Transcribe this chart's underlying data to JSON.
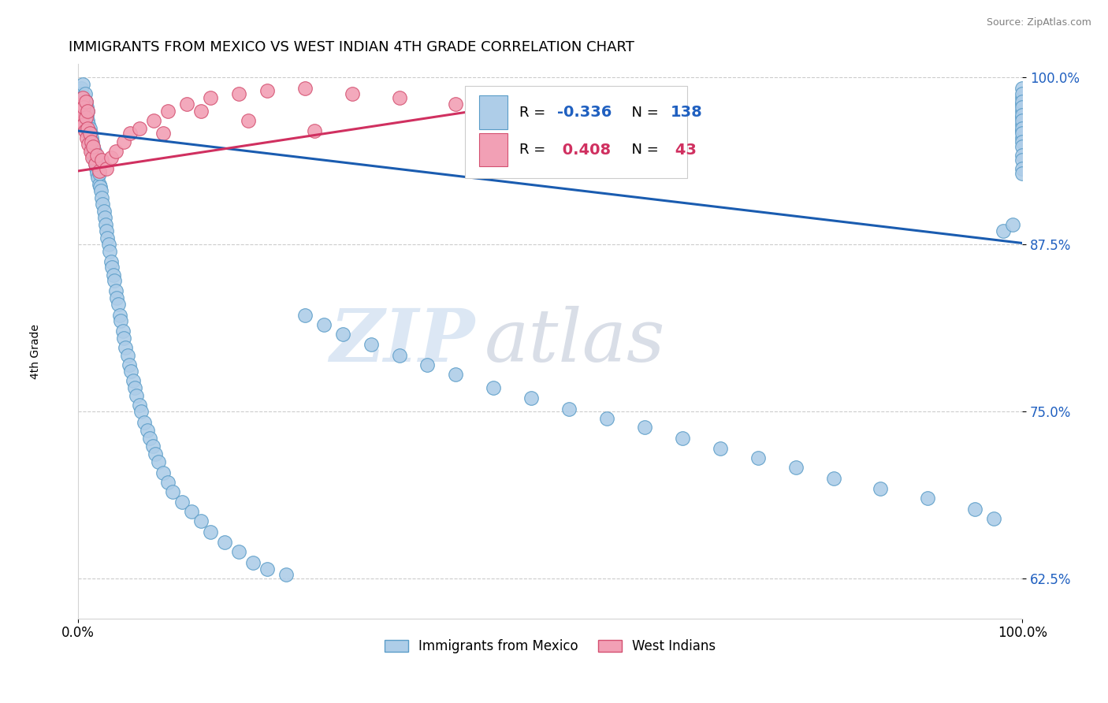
{
  "title": "IMMIGRANTS FROM MEXICO VS WEST INDIAN 4TH GRADE CORRELATION CHART",
  "source_text": "Source: ZipAtlas.com",
  "ylabel": "4th Grade",
  "xlim": [
    0.0,
    1.0
  ],
  "ylim": [
    0.595,
    1.01
  ],
  "x_tick_labels": [
    "0.0%",
    "100.0%"
  ],
  "y_tick_right": [
    0.625,
    0.75,
    0.875,
    1.0
  ],
  "y_tick_right_labels": [
    "62.5%",
    "75.0%",
    "87.5%",
    "100.0%"
  ],
  "mexico_color": "#aecde8",
  "mexico_edge": "#5b9dc8",
  "west_indian_color": "#f2a0b5",
  "west_indian_edge": "#d45070",
  "legend_R_color_mexico": "#2060c0",
  "legend_R_color_west": "#d03060",
  "trend_blue": "#1a5cb0",
  "trend_pink": "#d03060",
  "watermark_zip": "ZIP",
  "watermark_atlas": "atlas",
  "watermark_color_zip": "#c5d8ee",
  "watermark_color_atlas": "#c0c8d8",
  "background_color": "#ffffff",
  "mexico_x": [
    0.002,
    0.003,
    0.003,
    0.004,
    0.004,
    0.005,
    0.005,
    0.005,
    0.006,
    0.006,
    0.006,
    0.007,
    0.007,
    0.007,
    0.008,
    0.008,
    0.008,
    0.009,
    0.009,
    0.009,
    0.01,
    0.01,
    0.01,
    0.011,
    0.011,
    0.012,
    0.012,
    0.013,
    0.013,
    0.014,
    0.014,
    0.015,
    0.015,
    0.016,
    0.016,
    0.017,
    0.017,
    0.018,
    0.018,
    0.019,
    0.02,
    0.02,
    0.021,
    0.022,
    0.022,
    0.023,
    0.024,
    0.025,
    0.026,
    0.027,
    0.028,
    0.029,
    0.03,
    0.031,
    0.032,
    0.033,
    0.035,
    0.036,
    0.037,
    0.038,
    0.04,
    0.041,
    0.042,
    0.044,
    0.045,
    0.047,
    0.048,
    0.05,
    0.052,
    0.054,
    0.056,
    0.058,
    0.06,
    0.062,
    0.065,
    0.067,
    0.07,
    0.073,
    0.076,
    0.079,
    0.082,
    0.085,
    0.09,
    0.095,
    0.1,
    0.11,
    0.12,
    0.13,
    0.14,
    0.155,
    0.17,
    0.185,
    0.2,
    0.22,
    0.24,
    0.26,
    0.28,
    0.31,
    0.34,
    0.37,
    0.4,
    0.44,
    0.48,
    0.52,
    0.56,
    0.6,
    0.64,
    0.68,
    0.72,
    0.76,
    0.8,
    0.85,
    0.9,
    0.95,
    0.97,
    0.98,
    0.99,
    1.0,
    1.0,
    1.0,
    1.0,
    1.0,
    1.0,
    1.0,
    1.0,
    1.0,
    1.0,
    1.0,
    1.0,
    1.0,
    1.0,
    1.0,
    1.0,
    1.0,
    1.0,
    1.0,
    1.0,
    1.0
  ],
  "mexico_y": [
    0.99,
    0.985,
    0.992,
    0.988,
    0.98,
    0.975,
    0.982,
    0.995,
    0.97,
    0.978,
    0.986,
    0.972,
    0.98,
    0.988,
    0.968,
    0.975,
    0.982,
    0.965,
    0.972,
    0.978,
    0.96,
    0.968,
    0.975,
    0.958,
    0.965,
    0.955,
    0.962,
    0.952,
    0.958,
    0.948,
    0.955,
    0.945,
    0.952,
    0.942,
    0.948,
    0.938,
    0.945,
    0.935,
    0.942,
    0.932,
    0.928,
    0.935,
    0.925,
    0.92,
    0.928,
    0.918,
    0.915,
    0.91,
    0.905,
    0.9,
    0.895,
    0.89,
    0.885,
    0.88,
    0.875,
    0.87,
    0.862,
    0.858,
    0.852,
    0.848,
    0.84,
    0.835,
    0.83,
    0.822,
    0.818,
    0.81,
    0.805,
    0.798,
    0.792,
    0.785,
    0.78,
    0.773,
    0.768,
    0.762,
    0.755,
    0.75,
    0.742,
    0.736,
    0.73,
    0.724,
    0.718,
    0.712,
    0.704,
    0.697,
    0.69,
    0.682,
    0.675,
    0.668,
    0.66,
    0.652,
    0.645,
    0.637,
    0.632,
    0.628,
    0.822,
    0.815,
    0.808,
    0.8,
    0.792,
    0.785,
    0.778,
    0.768,
    0.76,
    0.752,
    0.745,
    0.738,
    0.73,
    0.722,
    0.715,
    0.708,
    0.7,
    0.692,
    0.685,
    0.677,
    0.67,
    0.885,
    0.89,
    0.985,
    0.992,
    0.98,
    0.975,
    0.97,
    0.965,
    0.96,
    0.955,
    0.988,
    0.982,
    0.978,
    0.972,
    0.968,
    0.962,
    0.958,
    0.952,
    0.948,
    0.942,
    0.938,
    0.932,
    0.928
  ],
  "west_indian_x": [
    0.002,
    0.003,
    0.004,
    0.005,
    0.005,
    0.006,
    0.006,
    0.007,
    0.008,
    0.008,
    0.009,
    0.01,
    0.01,
    0.011,
    0.012,
    0.013,
    0.014,
    0.015,
    0.016,
    0.018,
    0.02,
    0.022,
    0.025,
    0.03,
    0.035,
    0.04,
    0.048,
    0.055,
    0.065,
    0.08,
    0.095,
    0.115,
    0.14,
    0.17,
    0.2,
    0.24,
    0.29,
    0.34,
    0.4,
    0.25,
    0.18,
    0.13,
    0.09
  ],
  "west_indian_y": [
    0.975,
    0.968,
    0.98,
    0.972,
    0.985,
    0.965,
    0.978,
    0.96,
    0.97,
    0.982,
    0.955,
    0.962,
    0.975,
    0.95,
    0.958,
    0.945,
    0.952,
    0.94,
    0.948,
    0.935,
    0.942,
    0.93,
    0.938,
    0.932,
    0.94,
    0.945,
    0.952,
    0.958,
    0.962,
    0.968,
    0.975,
    0.98,
    0.985,
    0.988,
    0.99,
    0.992,
    0.988,
    0.985,
    0.98,
    0.96,
    0.968,
    0.975,
    0.958
  ],
  "blue_trend_x0": 0.0,
  "blue_trend_x1": 1.0,
  "blue_trend_y0": 0.96,
  "blue_trend_y1": 0.876,
  "pink_trend_x0": 0.0,
  "pink_trend_x1": 0.42,
  "pink_trend_y0": 0.93,
  "pink_trend_y1": 0.975
}
